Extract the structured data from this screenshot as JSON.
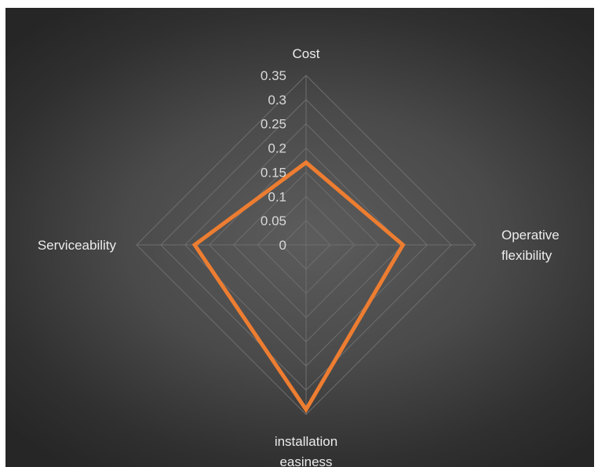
{
  "chart_data": {
    "type": "radar",
    "categories": [
      "Cost",
      "Operative flexibility",
      "installation easiness",
      "Serviceability"
    ],
    "category_lines": [
      [
        "Cost"
      ],
      [
        "Operative",
        "flexibility"
      ],
      [
        "installation",
        "easiness"
      ],
      [
        "Serviceability"
      ]
    ],
    "series": [
      {
        "values": [
          0.17,
          0.2,
          0.34,
          0.23
        ]
      }
    ],
    "rlim": [
      0,
      0.35
    ],
    "ticks": [
      "0",
      "0.05",
      "0.1",
      "0.15",
      "0.2",
      "0.25",
      "0.3",
      "0.35"
    ],
    "tick_values": [
      0,
      0.05,
      0.1,
      0.15,
      0.2,
      0.25,
      0.3,
      0.35
    ],
    "grid": true,
    "colors": {
      "series": "#ED7D31",
      "grid": "#6e6e6e",
      "text": "#ececec"
    }
  }
}
